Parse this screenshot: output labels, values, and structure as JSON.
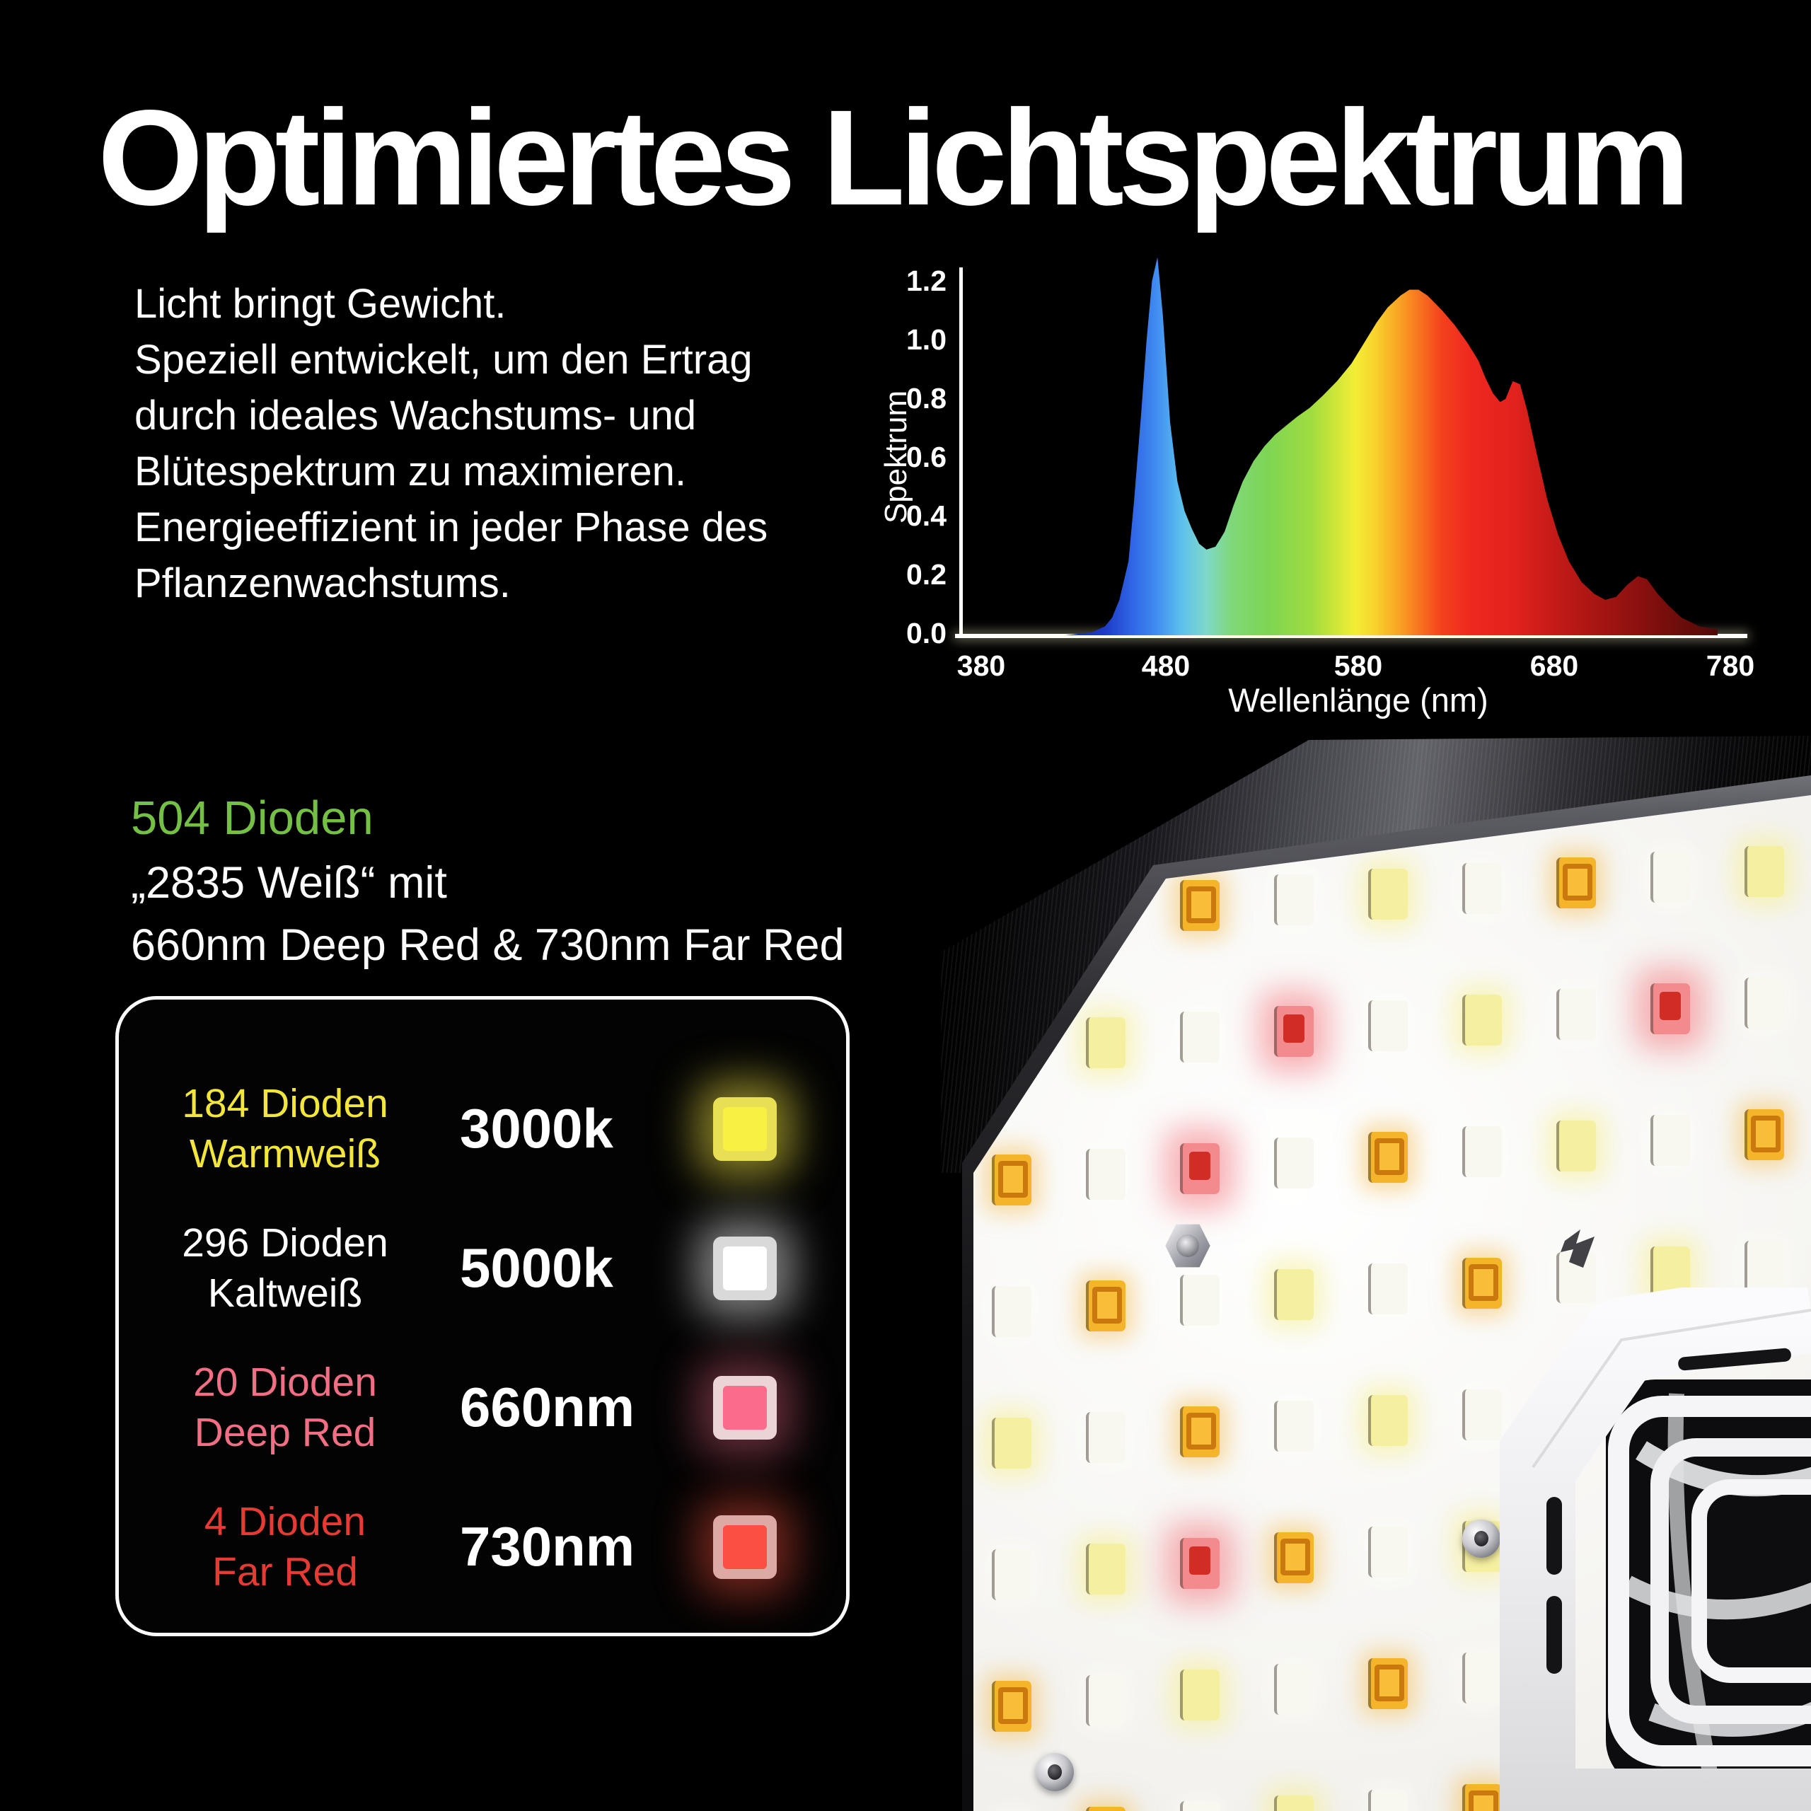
{
  "title": "Optimiertes Lichtspektrum",
  "intro": {
    "lines": [
      "Licht bringt Gewicht.",
      "Speziell entwickelt, um den Ertrag",
      "durch ideales Wachstums- und",
      "Blütespektrum zu maximieren.",
      "Energieeffizient in jeder Phase des",
      "Pflanzenwachstums."
    ]
  },
  "chart": {
    "ylabel": "Spektrum",
    "xlabel": "Wellenlänge (nm)",
    "yticks": [
      "1.2",
      "1.0",
      "0.8",
      "0.6",
      "0.4",
      "0.2",
      "0.0"
    ],
    "xticks": [
      "380",
      "480",
      "580",
      "680",
      "780"
    ]
  },
  "chart_data": {
    "type": "area",
    "title": "LED Lichtspektrum",
    "xlabel": "Wellenlänge (nm)",
    "ylabel": "Spektrum",
    "xlim": [
      380,
      780
    ],
    "ylim": [
      0.0,
      1.2
    ],
    "grid": false,
    "legend": "none",
    "x": [
      380,
      420,
      435,
      442,
      446,
      450,
      455,
      458,
      462,
      465,
      468,
      471,
      474,
      478,
      482,
      486,
      490,
      494,
      498,
      503,
      508,
      513,
      518,
      524,
      530,
      536,
      542,
      548,
      555,
      562,
      570,
      578,
      585,
      592,
      598,
      605,
      610,
      615,
      620,
      628,
      635,
      642,
      648,
      652,
      656,
      660,
      663,
      667,
      671,
      675,
      680,
      686,
      692,
      698,
      705,
      712,
      718,
      724,
      730,
      736,
      741,
      747,
      753,
      760,
      770,
      780
    ],
    "y": [
      0,
      0,
      0.01,
      0.03,
      0.06,
      0.12,
      0.25,
      0.45,
      0.75,
      1.0,
      1.2,
      1.28,
      1.08,
      0.72,
      0.52,
      0.42,
      0.36,
      0.31,
      0.29,
      0.3,
      0.35,
      0.44,
      0.52,
      0.59,
      0.64,
      0.68,
      0.71,
      0.74,
      0.77,
      0.81,
      0.86,
      0.92,
      0.99,
      1.06,
      1.11,
      1.15,
      1.17,
      1.17,
      1.15,
      1.1,
      1.05,
      0.99,
      0.93,
      0.87,
      0.82,
      0.79,
      0.8,
      0.86,
      0.85,
      0.76,
      0.62,
      0.46,
      0.34,
      0.25,
      0.18,
      0.14,
      0.12,
      0.13,
      0.17,
      0.2,
      0.19,
      0.14,
      0.1,
      0.06,
      0.03,
      0.02
    ],
    "gradient": [
      {
        "at": 0.0,
        "c": "#101060"
      },
      {
        "at": 0.155,
        "c": "#1e3bc8"
      },
      {
        "at": 0.19,
        "c": "#2f62e4"
      },
      {
        "at": 0.225,
        "c": "#3f8bf0"
      },
      {
        "at": 0.26,
        "c": "#5cc0ee"
      },
      {
        "at": 0.295,
        "c": "#7fd8c8"
      },
      {
        "at": 0.33,
        "c": "#7fd878"
      },
      {
        "at": 0.38,
        "c": "#7ed553"
      },
      {
        "at": 0.44,
        "c": "#a0dc40"
      },
      {
        "at": 0.48,
        "c": "#d8e838"
      },
      {
        "at": 0.5,
        "c": "#f4ee35"
      },
      {
        "at": 0.53,
        "c": "#f8cf2c"
      },
      {
        "at": 0.56,
        "c": "#f9a424"
      },
      {
        "at": 0.59,
        "c": "#f7711f"
      },
      {
        "at": 0.62,
        "c": "#f4401d"
      },
      {
        "at": 0.66,
        "c": "#ee281e"
      },
      {
        "at": 0.72,
        "c": "#e1221d"
      },
      {
        "at": 0.78,
        "c": "#c21a17"
      },
      {
        "at": 0.86,
        "c": "#9b1311"
      },
      {
        "at": 0.93,
        "c": "#760e0c"
      },
      {
        "at": 1.0,
        "c": "#500a09"
      }
    ]
  },
  "diodes": {
    "total": "504 Dioden",
    "total_color": "#74c044",
    "subtitle_line1": "„2835 Weiß“ mit",
    "subtitle_line2": "660nm Deep Red & 730nm Far Red",
    "rows": [
      {
        "count": "184 Dioden",
        "name": "Warmweiß",
        "value": "3000k",
        "label_color": "#f2e63a",
        "frame": "#e9df55",
        "core": "#f8f043",
        "glow": "rgba(244,232,70,0.55)"
      },
      {
        "count": "296 Dioden",
        "name": "Kaltweiß",
        "value": "5000k",
        "label_color": "#ffffff",
        "frame": "#d9d9d9",
        "core": "#ffffff",
        "glow": "rgba(255,255,255,0.5)"
      },
      {
        "count": "20 Dioden",
        "name": "Deep Red",
        "value": "660nm",
        "label_color": "#f26e85",
        "frame": "#ead4d6",
        "core": "#fb6c8c",
        "glow": "rgba(250,110,140,0.4)"
      },
      {
        "count": "4 Dioden",
        "name": "Far Red",
        "value": "730nm",
        "label_color": "#e83a34",
        "frame": "#dda9a4",
        "core": "#fb4f43",
        "glow": "rgba(250,80,60,0.45)"
      }
    ]
  }
}
